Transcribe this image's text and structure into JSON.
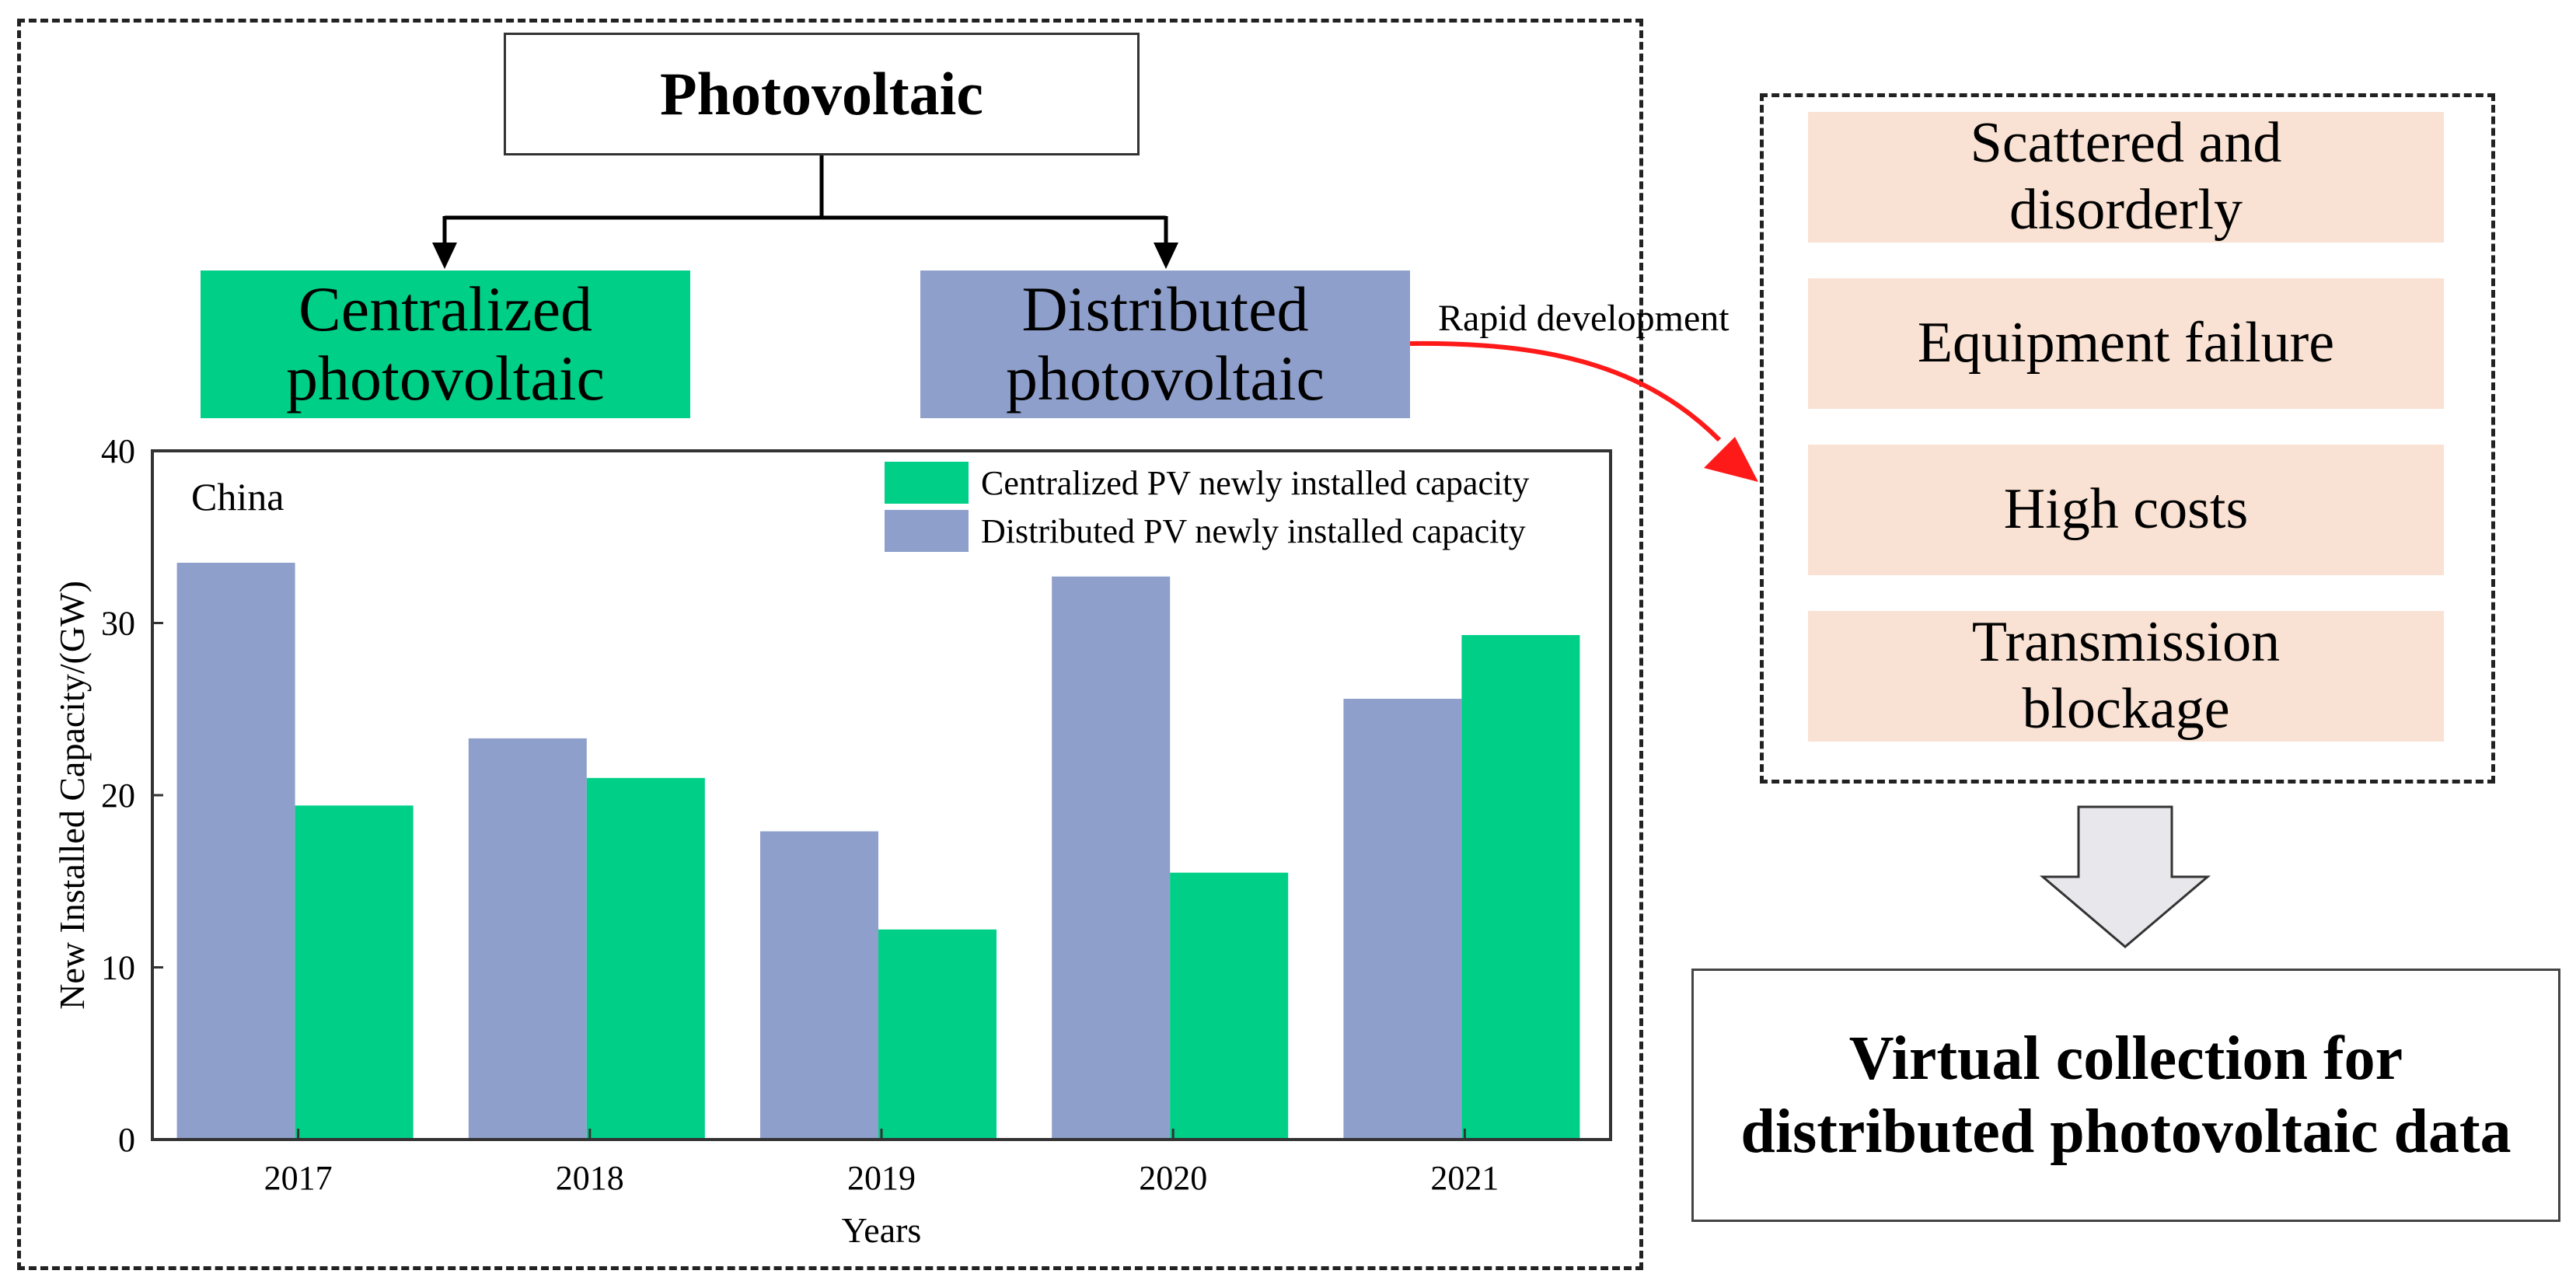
{
  "diagram": {
    "title": "Photovoltaic",
    "categories": {
      "centralized": "Centralized photovoltaic",
      "distributed": "Distributed photovoltaic"
    },
    "arrow_label": "Rapid development",
    "issues": [
      "Scattered and disorderly",
      "Equipment failure",
      "High costs",
      "Transmission blockage"
    ],
    "result": "Virtual collection for distributed photovoltaic data"
  },
  "colors": {
    "centralized": "#00cf88",
    "distributed": "#8f9fcb",
    "issue_fill": "#f9e2d3",
    "arrow_red": "#ff1a1a",
    "block_arrow_fill": "#e8e8ec"
  },
  "chart_data": {
    "type": "bar",
    "annotation": "China",
    "categories": [
      "2017",
      "2018",
      "2019",
      "2020",
      "2021"
    ],
    "series": [
      {
        "name": "Distributed PV newly installed capacity",
        "values": [
          33.5,
          23.3,
          17.9,
          32.7,
          25.6
        ]
      },
      {
        "name": "Centralized PV newly installed capacity",
        "values": [
          19.4,
          21.0,
          12.2,
          15.5,
          29.3
        ]
      }
    ],
    "legend_order": [
      "Centralized PV newly installed capacity",
      "Distributed PV newly installed capacity"
    ],
    "ylim": [
      0,
      40
    ],
    "yticks": [
      "0",
      "10",
      "20",
      "30",
      "40"
    ],
    "xlabel": "Years",
    "ylabel": "New Installed Capacity/(GW)",
    "legend_position": "top-right",
    "grid": false
  }
}
